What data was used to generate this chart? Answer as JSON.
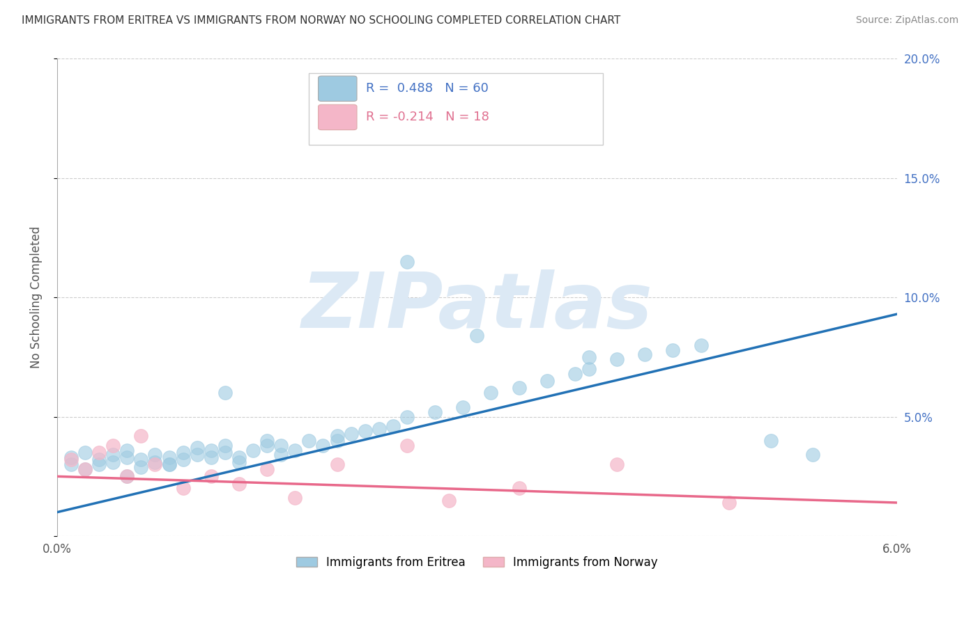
{
  "title": "IMMIGRANTS FROM ERITREA VS IMMIGRANTS FROM NORWAY NO SCHOOLING COMPLETED CORRELATION CHART",
  "source": "Source: ZipAtlas.com",
  "ylabel": "No Schooling Completed",
  "xlim": [
    0.0,
    0.06
  ],
  "ylim": [
    0.0,
    0.2
  ],
  "eritrea_color": "#9ecae1",
  "norway_color": "#f4b6c8",
  "trendline_eritrea_color": "#2171b5",
  "trendline_norway_color": "#e8688a",
  "legend_label_eritrea": "Immigrants from Eritrea",
  "legend_label_norway": "Immigrants from Norway",
  "R_eritrea": 0.488,
  "N_eritrea": 60,
  "R_norway": -0.214,
  "N_norway": 18,
  "trendline_eritrea": [
    0.01,
    0.093
  ],
  "trendline_norway": [
    0.025,
    0.014
  ],
  "background_color": "#ffffff",
  "watermark": "ZIPatlas",
  "watermark_color": "#dce9f5",
  "eritrea_x": [
    0.001,
    0.001,
    0.002,
    0.002,
    0.003,
    0.003,
    0.004,
    0.004,
    0.005,
    0.005,
    0.006,
    0.006,
    0.007,
    0.007,
    0.008,
    0.008,
    0.009,
    0.009,
    0.01,
    0.01,
    0.011,
    0.011,
    0.012,
    0.012,
    0.013,
    0.013,
    0.014,
    0.015,
    0.015,
    0.016,
    0.016,
    0.017,
    0.018,
    0.019,
    0.02,
    0.02,
    0.021,
    0.022,
    0.023,
    0.024,
    0.025,
    0.027,
    0.029,
    0.031,
    0.033,
    0.035,
    0.037,
    0.038,
    0.04,
    0.042,
    0.044,
    0.046,
    0.005,
    0.008,
    0.012,
    0.025,
    0.03,
    0.038,
    0.051,
    0.054
  ],
  "eritrea_y": [
    0.03,
    0.033,
    0.028,
    0.035,
    0.032,
    0.03,
    0.034,
    0.031,
    0.033,
    0.036,
    0.029,
    0.032,
    0.034,
    0.031,
    0.033,
    0.03,
    0.035,
    0.032,
    0.037,
    0.034,
    0.036,
    0.033,
    0.035,
    0.038,
    0.033,
    0.031,
    0.036,
    0.038,
    0.04,
    0.034,
    0.038,
    0.036,
    0.04,
    0.038,
    0.042,
    0.04,
    0.043,
    0.044,
    0.045,
    0.046,
    0.05,
    0.052,
    0.054,
    0.06,
    0.062,
    0.065,
    0.068,
    0.07,
    0.074,
    0.076,
    0.078,
    0.08,
    0.025,
    0.03,
    0.06,
    0.115,
    0.084,
    0.075,
    0.04,
    0.034
  ],
  "norway_x": [
    0.001,
    0.002,
    0.003,
    0.004,
    0.005,
    0.006,
    0.007,
    0.009,
    0.011,
    0.013,
    0.015,
    0.017,
    0.02,
    0.025,
    0.028,
    0.033,
    0.04,
    0.048
  ],
  "norway_y": [
    0.032,
    0.028,
    0.035,
    0.038,
    0.025,
    0.042,
    0.03,
    0.02,
    0.025,
    0.022,
    0.028,
    0.016,
    0.03,
    0.038,
    0.015,
    0.02,
    0.03,
    0.014
  ]
}
